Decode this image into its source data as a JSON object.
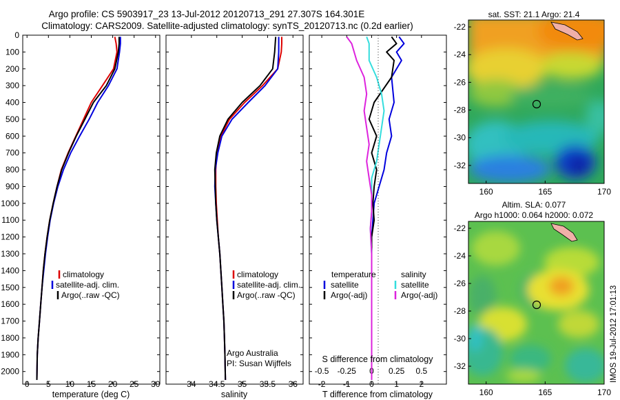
{
  "title": {
    "line1": "Argo profile: CS 5903917_23 13-Jul-2012 20120713_291 27.307S 164.301E",
    "line2": "Climatology: CARS2009. Satellite-adjusted climatology: synTS_20120713.nc (0.2d earlier)"
  },
  "colors": {
    "climatology": "#dd0000",
    "satellite": "#0000dd",
    "argo": "#000000",
    "sat_s": "#33dddd",
    "argo_s": "#dd22dd"
  },
  "chart_data": [
    {
      "type": "line",
      "id": "temperature",
      "xlabel": "temperature (deg C)",
      "xlim": [
        -1,
        31
      ],
      "ylim": [
        0,
        2075
      ],
      "xticks": [
        0,
        5,
        10,
        15,
        20,
        25,
        30
      ],
      "yticks": [
        0,
        100,
        200,
        300,
        400,
        500,
        600,
        700,
        800,
        900,
        1000,
        1100,
        1200,
        1300,
        1400,
        1500,
        1600,
        1700,
        1800,
        1900,
        2000
      ],
      "y_reversed": true,
      "legend": [
        "climatology",
        "satellite-adj. clim.",
        "Argo(..raw -QC)"
      ],
      "series": [
        {
          "name": "climatology",
          "color_key": "climatology",
          "x": [
            20.5,
            20.8,
            21.0,
            20.2,
            17.6,
            15.0,
            13.2,
            11.4,
            9.6,
            8.0,
            7.0,
            6.1,
            5.3,
            4.7,
            4.2,
            3.8,
            3.5,
            3.2,
            2.9,
            2.6,
            2.4,
            2.3
          ],
          "y": [
            10,
            50,
            100,
            200,
            300,
            400,
            500,
            600,
            700,
            800,
            900,
            1000,
            1100,
            1200,
            1300,
            1400,
            1500,
            1600,
            1700,
            1800,
            1900,
            2050
          ]
        },
        {
          "name": "satellite-adj. clim.",
          "color_key": "satellite",
          "x": [
            21.8,
            21.8,
            21.6,
            21.0,
            19.0,
            16.5,
            14.5,
            12.3,
            10.2,
            8.5,
            7.2,
            6.2,
            5.4,
            4.8,
            4.3,
            3.9,
            3.5,
            3.2,
            2.9,
            2.6,
            2.4,
            2.3
          ],
          "y": [
            10,
            50,
            100,
            200,
            300,
            400,
            500,
            600,
            700,
            800,
            900,
            1000,
            1100,
            1200,
            1300,
            1400,
            1500,
            1600,
            1700,
            1800,
            1900,
            2050
          ]
        },
        {
          "name": "Argo(..raw -QC)",
          "color_key": "argo",
          "x": [
            21.5,
            21.5,
            21.3,
            20.5,
            18.5,
            15.5,
            13.5,
            11.5,
            9.7,
            8.1,
            7.0,
            6.1,
            5.3,
            4.7,
            4.2,
            3.8,
            3.5,
            3.2,
            2.9,
            2.6,
            2.4,
            2.3
          ],
          "y": [
            10,
            50,
            100,
            200,
            300,
            400,
            500,
            600,
            700,
            800,
            900,
            1000,
            1100,
            1200,
            1300,
            1400,
            1500,
            1600,
            1700,
            1800,
            1900,
            2050
          ]
        }
      ]
    },
    {
      "type": "line",
      "id": "salinity",
      "xlabel": "salinity",
      "xlim": [
        33.5,
        36.2
      ],
      "ylim": [
        0,
        2075
      ],
      "xticks": [
        34,
        34.5,
        35,
        35.5,
        36
      ],
      "y_reversed": true,
      "legend": [
        "climatology",
        "satellite-adj. clim.",
        "Argo(..raw -QC)"
      ],
      "annotation": [
        "Argo Australia",
        "PI: Susan Wijffels"
      ],
      "series": [
        {
          "name": "climatology",
          "color_key": "climatology",
          "x": [
            35.78,
            35.78,
            35.77,
            35.7,
            35.4,
            35.05,
            34.75,
            34.58,
            34.5,
            34.48,
            34.48,
            34.49,
            34.51,
            34.53,
            34.56,
            34.58,
            34.6,
            34.62,
            34.64,
            34.65,
            34.66,
            34.67
          ],
          "y": [
            10,
            50,
            100,
            200,
            300,
            400,
            500,
            600,
            700,
            800,
            900,
            1000,
            1100,
            1200,
            1300,
            1400,
            1500,
            1600,
            1700,
            1800,
            1900,
            2050
          ]
        },
        {
          "name": "satellite-adj. clim.",
          "color_key": "satellite",
          "x": [
            35.72,
            35.72,
            35.72,
            35.7,
            35.45,
            35.12,
            34.8,
            34.6,
            34.52,
            34.47,
            34.46,
            34.48,
            34.5,
            34.53,
            34.56,
            34.58,
            34.6,
            34.62,
            34.64,
            34.65,
            34.66,
            34.67
          ],
          "y": [
            10,
            50,
            100,
            200,
            300,
            400,
            500,
            600,
            700,
            800,
            900,
            1000,
            1100,
            1200,
            1300,
            1400,
            1500,
            1600,
            1700,
            1800,
            1900,
            2050
          ]
        },
        {
          "name": "Argo(..raw -QC)",
          "color_key": "argo",
          "x": [
            35.66,
            35.65,
            35.64,
            35.6,
            35.35,
            35.0,
            34.72,
            34.56,
            34.49,
            34.46,
            34.47,
            34.48,
            34.5,
            34.53,
            34.56,
            34.58,
            34.6,
            34.62,
            34.64,
            34.65,
            34.66,
            34.67
          ],
          "y": [
            10,
            50,
            100,
            200,
            300,
            400,
            500,
            600,
            700,
            800,
            900,
            1000,
            1100,
            1200,
            1300,
            1400,
            1500,
            1600,
            1700,
            1800,
            1900,
            2050
          ]
        }
      ]
    },
    {
      "type": "line",
      "id": "difference",
      "xlabel": "T difference from climatology",
      "xlabel_top": "S difference from climatology",
      "xlim": [
        -2.5,
        3.0
      ],
      "ylim": [
        0,
        2075
      ],
      "xticks": [
        -2,
        -1,
        0,
        1,
        2
      ],
      "xticks_s": [
        "-0.5",
        "-0.25",
        "0",
        "0.25",
        "0.5"
      ],
      "y_reversed": true,
      "legend_left_title": "temperature",
      "legend_right_title": "salinity",
      "legend": [
        "satellite",
        "Argo(-adj)",
        "satellite",
        "Argo(-adj)"
      ],
      "series": [
        {
          "name": "satellite",
          "color_key": "satellite",
          "x": [
            1.1,
            1.3,
            1.0,
            1.2,
            0.8,
            0.9,
            0.7,
            0.8,
            0.6,
            0.5,
            0.3,
            0.1,
            0.05,
            0.0,
            0.0,
            0.0,
            0.0,
            0.0,
            0.0,
            0.0,
            0.0
          ],
          "y": [
            10,
            50,
            100,
            150,
            250,
            400,
            500,
            600,
            700,
            800,
            900,
            1000,
            1100,
            1200,
            1300,
            1400,
            1500,
            1600,
            1700,
            1800,
            2050
          ]
        },
        {
          "name": "Argo(-adj)",
          "color_key": "argo",
          "x": [
            0.8,
            1.0,
            0.6,
            0.9,
            0.8,
            0.1,
            -0.1,
            0.2,
            0.0,
            0.2,
            0.1,
            0.05,
            0.1,
            0.0,
            0.0,
            0.0,
            0.0,
            0.0,
            0.0,
            0.0,
            0.0
          ],
          "y": [
            10,
            50,
            100,
            150,
            250,
            400,
            500,
            600,
            700,
            800,
            900,
            1000,
            1100,
            1200,
            1300,
            1400,
            1500,
            1600,
            1700,
            1800,
            2050
          ]
        },
        {
          "name": "satellite",
          "color_key": "sat_s",
          "x": [
            -0.2,
            -0.1,
            -0.1,
            0.2,
            0.4,
            0.5,
            0.4,
            0.3,
            0.2,
            0.0,
            0.0,
            0.0,
            -0.05,
            0.0,
            0.0,
            0.0,
            0.0,
            0.0,
            0.0
          ],
          "y": [
            10,
            50,
            150,
            250,
            350,
            450,
            550,
            650,
            750,
            850,
            950,
            1050,
            1150,
            1300,
            1400,
            1500,
            1600,
            1800,
            2050
          ]
        },
        {
          "name": "Argo(-adj)",
          "color_key": "argo_s",
          "x": [
            -1.0,
            -0.8,
            -0.6,
            -0.3,
            -0.2,
            -0.3,
            -0.2,
            -0.1,
            -0.2,
            -0.1,
            0.0,
            0.0,
            -0.05,
            0.0,
            0.0,
            0.0,
            0.0,
            0.0,
            0.0
          ],
          "y": [
            10,
            50,
            150,
            250,
            350,
            450,
            550,
            650,
            750,
            850,
            950,
            1050,
            1150,
            1300,
            1400,
            1500,
            1600,
            1800,
            2050
          ]
        }
      ]
    },
    {
      "type": "heatmap",
      "id": "sst_map",
      "title": "sat. SST: 21.1  Argo: 21.4",
      "xticks": [
        160,
        165,
        170
      ],
      "yticks": [
        -22,
        -24,
        -26,
        -28,
        -30,
        -32
      ],
      "xlim": [
        158.5,
        170
      ],
      "ylim": [
        -33.3,
        -21.5
      ],
      "marker": {
        "lon": 164.301,
        "lat": -27.307
      }
    },
    {
      "type": "heatmap",
      "id": "sla_map",
      "title": "Altim. SLA: 0.077",
      "subtitle": "Argo h1000: 0.064 h2000: 0.072",
      "xticks": [
        160,
        165,
        170
      ],
      "yticks": [
        -22,
        -24,
        -26,
        -28,
        -30,
        -32
      ],
      "xlim": [
        158.5,
        170
      ],
      "ylim": [
        -33.3,
        -21.5
      ],
      "marker": {
        "lon": 164.301,
        "lat": -27.307
      }
    }
  ],
  "credit": "IMOS 19-Jul-2012 17:01:13"
}
